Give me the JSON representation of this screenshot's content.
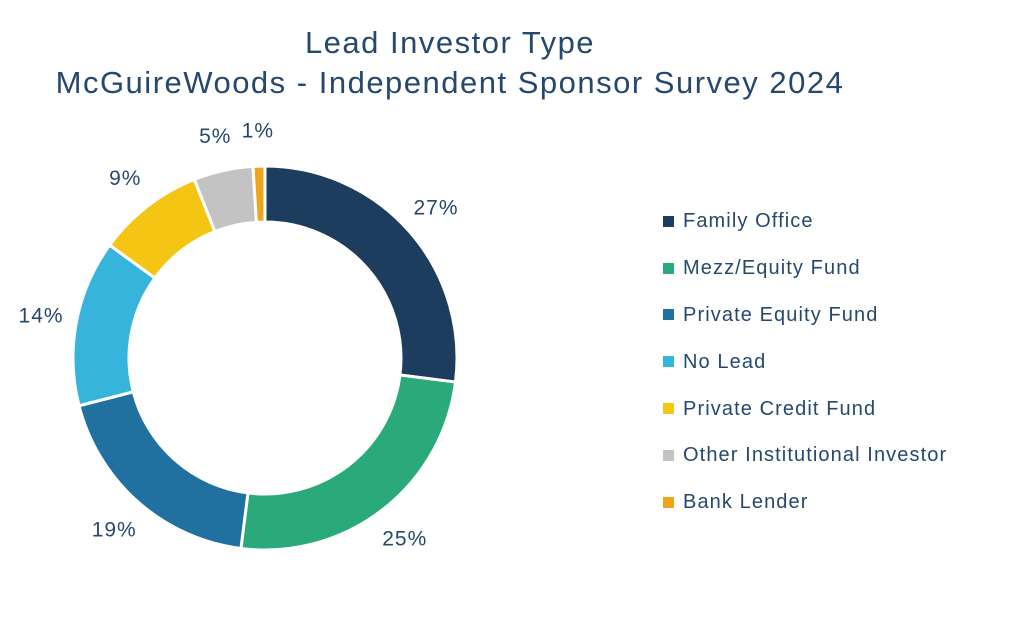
{
  "chart": {
    "title_line1": "Lead Investor Type",
    "title_line2": "McGuireWoods - Independent Sponsor Survey 2024",
    "text_color": "#26486d",
    "background_color": "#ffffff"
  },
  "chart_data": {
    "type": "pie",
    "subtype": "donut",
    "title": "Lead Investor Type",
    "subtitle": "McGuireWoods - Independent Sponsor Survey 2024",
    "categories": [
      "Family Office",
      "Mezz/Equity Fund",
      "Private Equity Fund",
      "No Lead",
      "Private Credit Fund",
      "Other Institutional Investor",
      "Bank Lender"
    ],
    "values": [
      27,
      25,
      19,
      14,
      9,
      5,
      1
    ],
    "unit": "%",
    "data_labels": [
      "27%",
      "25%",
      "19%",
      "14%",
      "9%",
      "5%",
      "1%"
    ],
    "colors": [
      "#1d3d5f",
      "#2aaa7a",
      "#20719f",
      "#36b4dc",
      "#f5c513",
      "#c3c3c3",
      "#f0a41c"
    ],
    "legend_position": "right",
    "legend_marker": "square",
    "start_angle_deg": 0,
    "direction": "clockwise",
    "gap_color": "#ffffff"
  }
}
